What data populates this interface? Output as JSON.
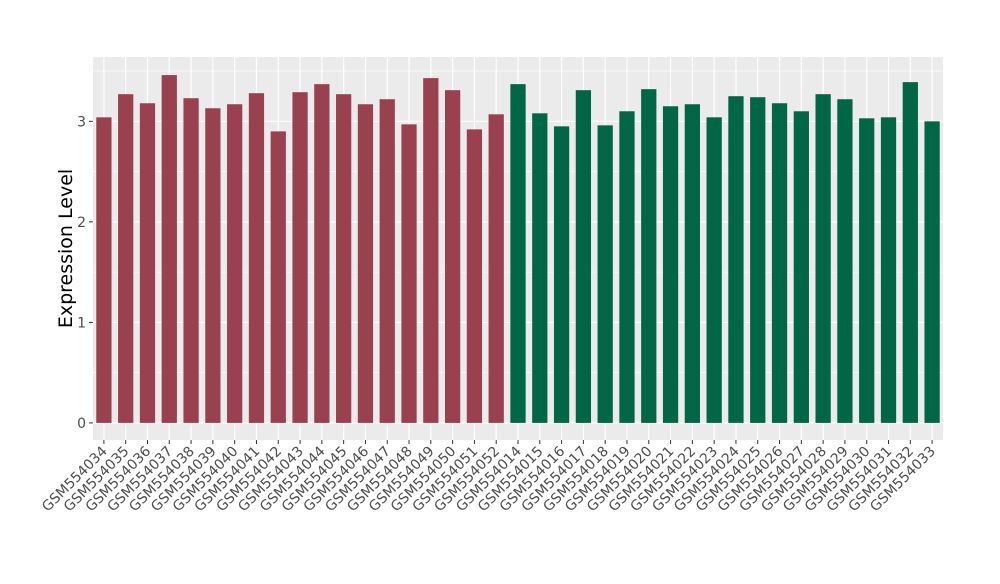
{
  "chart_data": {
    "type": "bar",
    "title": "",
    "xlabel": "",
    "ylabel": "Expression Level",
    "ylim": [
      -0.17,
      3.64
    ],
    "yticks": [
      0,
      1,
      2,
      3
    ],
    "grid": true,
    "categories": [
      "GSM554034",
      "GSM554035",
      "GSM554036",
      "GSM554037",
      "GSM554038",
      "GSM554039",
      "GSM554040",
      "GSM554041",
      "GSM554042",
      "GSM554043",
      "GSM554044",
      "GSM554045",
      "GSM554046",
      "GSM554047",
      "GSM554048",
      "GSM554049",
      "GSM554050",
      "GSM554051",
      "GSM554052",
      "GSM554014",
      "GSM554015",
      "GSM554016",
      "GSM554017",
      "GSM554018",
      "GSM554019",
      "GSM554020",
      "GSM554021",
      "GSM554022",
      "GSM554023",
      "GSM554024",
      "GSM554025",
      "GSM554026",
      "GSM554027",
      "GSM554028",
      "GSM554029",
      "GSM554030",
      "GSM554031",
      "GSM554032",
      "GSM554033"
    ],
    "values": [
      3.04,
      3.27,
      3.18,
      3.46,
      3.23,
      3.13,
      3.17,
      3.28,
      2.9,
      3.29,
      3.37,
      3.27,
      3.17,
      3.22,
      2.97,
      3.43,
      3.31,
      2.92,
      3.07,
      3.37,
      3.08,
      2.95,
      3.31,
      2.96,
      3.1,
      3.32,
      3.15,
      3.17,
      3.04,
      3.25,
      3.24,
      3.18,
      3.1,
      3.27,
      3.22,
      3.03,
      3.04,
      3.39,
      3.0
    ],
    "groups": [
      {
        "color": "#9A4150",
        "count": 19
      },
      {
        "color": "#006645",
        "count": 20
      }
    ],
    "background": "#EBEBEB"
  }
}
